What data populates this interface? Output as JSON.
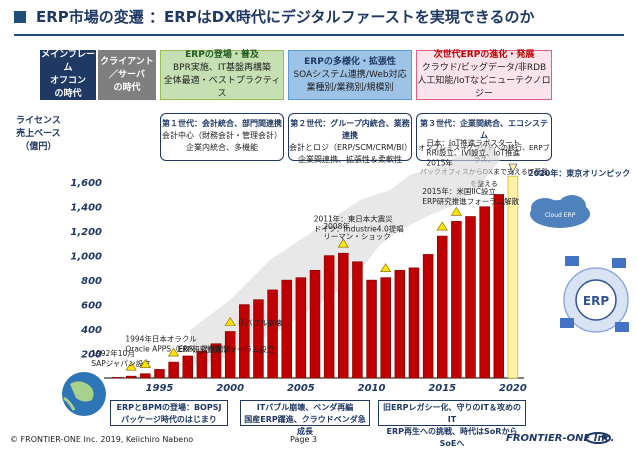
{
  "title": "ERP市場の変遷 ：ERPはDX時代にデジタルファーストを実現できるのか",
  "eras": [
    {
      "lines": [
        "メインフレーム",
        "オフコン",
        "の時代"
      ]
    },
    {
      "lines": [
        "クライアント",
        "／サーバ",
        "の時代"
      ]
    },
    {
      "lines": [
        "ERPの登場・普及",
        "BPR実施、IT基盤再構築",
        "全体最適・ベストプラクティス"
      ]
    },
    {
      "lines": [
        "ERPの多様化・拡張性",
        "SOAシステム連携/Web対応",
        "業種別/業務別/規模別"
      ]
    },
    {
      "lines": [
        "次世代ERPの進化・発展",
        "クラウド/ビッグデータ/非RDB",
        "人工知能/IoTなどニューテクノロジー"
      ]
    }
  ],
  "generations": [
    {
      "head": "第１世代：会計統合、部門間連携",
      "lines": [
        "会計中心（財務会計・管理会計）",
        "企業内統合、多機能"
      ]
    },
    {
      "head": "第２世代：グループ内統合、業務連携",
      "lines": [
        "会計とロジ（ERP/SCM/CRM/BI）",
        "企業間連携、拡張性＆柔軟性"
      ]
    },
    {
      "head": "第３世代：企業間統合、エコシステム",
      "lines": [
        "オンプレミス→クラウドへの移行、ERPブラス、",
        "バックオフィスからDXまで支えるIT基盤を整える"
      ]
    }
  ],
  "ylabel": [
    "ライセンス",
    "売上ベース",
    "（億円）"
  ],
  "olympic_label": "2020年：東京オリンピック",
  "chart_data": {
    "type": "bar",
    "ylim": [
      0,
      1700
    ],
    "yticks": [
      200,
      400,
      600,
      800,
      1000,
      1200,
      1400,
      1600
    ],
    "ytick_labels": [
      "200",
      "400",
      "600",
      "800",
      "1,000",
      "1,200",
      "1,400",
      "1,600"
    ],
    "x": [
      1992,
      1993,
      1994,
      1995,
      1996,
      1997,
      1998,
      1999,
      2000,
      2001,
      2002,
      2003,
      2004,
      2005,
      2006,
      2007,
      2008,
      2009,
      2010,
      2011,
      2012,
      2013,
      2014,
      2015,
      2016,
      2017,
      2018,
      2019,
      2020
    ],
    "values": [
      5,
      15,
      35,
      70,
      130,
      180,
      220,
      280,
      380,
      600,
      640,
      720,
      800,
      820,
      880,
      1000,
      1020,
      950,
      800,
      820,
      880,
      900,
      1010,
      1160,
      1280,
      1320,
      1400,
      1500,
      1650
    ],
    "highlight_year": 2020,
    "xtick_labels": [
      "1995",
      "2000",
      "2005",
      "2010",
      "2015",
      "2020"
    ],
    "xtick_years": [
      1995,
      2000,
      2005,
      2010,
      2015,
      2020
    ],
    "annotations": [
      {
        "year": 1993,
        "lines": [
          "1992年10月",
          "SAPジャパン設立"
        ]
      },
      {
        "year": 1994,
        "lines": [
          "1994年日本オラクル",
          "Oracle APPS（EBS）提供開始"
        ]
      },
      {
        "year": 1996,
        "lines": [
          "ERP研究推進フォーラム設立"
        ]
      },
      {
        "year": 2000,
        "lines": [
          "ITバブル崩壊"
        ]
      },
      {
        "year": 2008,
        "lines": [
          "2008年",
          "リーマン・ショック"
        ]
      },
      {
        "year": 2011,
        "lines": [
          "2011年：東日本大震災",
          "ドイツ：Industrie4.0提唱"
        ]
      },
      {
        "year": 2015,
        "lines": [
          "2015年：米国IIC設立",
          "ERP研究推進フォーラム解散"
        ]
      },
      {
        "year": 2016,
        "lines": [
          "日本：IoT推進ラボスタート",
          "RRI設立、IVI設立、IoT推進",
          "2015年"
        ]
      }
    ]
  },
  "bottom_boxes": [
    {
      "lines": [
        "ERPとBPMの登場：BOPSJ",
        "パッケージ時代のはじまり"
      ]
    },
    {
      "lines": [
        "ITバブル崩壊、ベンダ再編",
        "国産ERP躍進、クラウドベンダ急成長"
      ]
    },
    {
      "lines": [
        "旧ERPレガシー化、守りのIT＆攻めのIT",
        "ERP再生への挑戦、時代はSoRからSoEへ"
      ]
    }
  ],
  "footer": "© FRONTIER-ONE Inc. 2019, Keiichiro Nabeno",
  "page": "Page 3",
  "logo": "FRONTIER-ONE Inc.",
  "cloud_label": "Cloud ERP",
  "erp_label": "ERP"
}
